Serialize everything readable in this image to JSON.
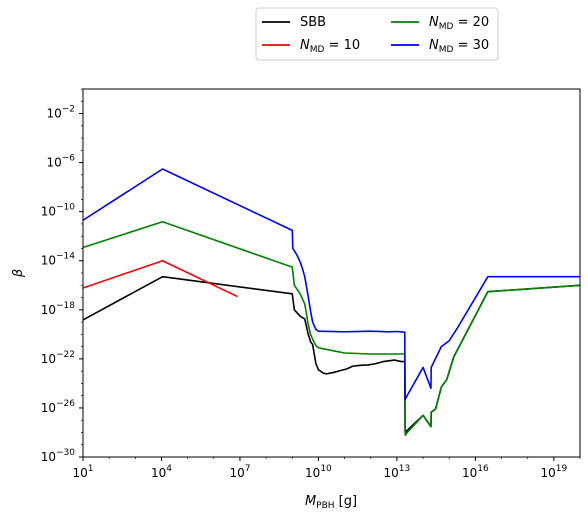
{
  "chart_data": {
    "type": "line",
    "xlabel": "M_PBH [g]",
    "ylabel": "β",
    "x_scale": "log",
    "y_scale": "log",
    "xlim": [
      10,
      1e+20
    ],
    "ylim": [
      1e-30,
      1
    ],
    "x_ticks": [
      {
        "value": 10,
        "base": "10",
        "exp": "1"
      },
      {
        "value": 10000.0,
        "base": "10",
        "exp": "4"
      },
      {
        "value": 10000000.0,
        "base": "10",
        "exp": "7"
      },
      {
        "value": 10000000000.0,
        "base": "10",
        "exp": "10"
      },
      {
        "value": 10000000000000.0,
        "base": "10",
        "exp": "13"
      },
      {
        "value": 1e+16,
        "base": "10",
        "exp": "16"
      },
      {
        "value": 1e+19,
        "base": "10",
        "exp": "19"
      }
    ],
    "y_ticks": [
      {
        "value": 1e-30,
        "base": "10",
        "exp": "−30"
      },
      {
        "value": 1e-26,
        "base": "10",
        "exp": "−26"
      },
      {
        "value": 1e-22,
        "base": "10",
        "exp": "−22"
      },
      {
        "value": 1e-18,
        "base": "10",
        "exp": "−18"
      },
      {
        "value": 1e-14,
        "base": "10",
        "exp": "−14"
      },
      {
        "value": 1e-10,
        "base": "10",
        "exp": "−10"
      },
      {
        "value": 1e-06,
        "base": "10",
        "exp": "−6"
      },
      {
        "value": 0.01,
        "base": "10",
        "exp": "−2"
      }
    ],
    "legend": {
      "placement": "above-plot",
      "columns": 2
    },
    "series": [
      {
        "name": "SBB",
        "label_main": "SBB",
        "label_sub": "",
        "label_suffix": "",
        "color": "#000000",
        "points": [
          [
            10,
            1.5e-19
          ],
          [
            11000.0,
            5e-16
          ],
          [
            1000000000.0,
            2e-17
          ],
          [
            1200000000.0,
            1e-18
          ],
          [
            2000000000.0,
            3e-19
          ],
          [
            3000000000.0,
            1.8e-19
          ],
          [
            4000000000.0,
            1.2e-20
          ],
          [
            5000000000.0,
            2.5e-21
          ],
          [
            6000000000.0,
            1.5e-21
          ],
          [
            8000000000.0,
            4e-23
          ],
          [
            10000000000.0,
            1.3e-23
          ],
          [
            15000000000.0,
            7e-24
          ],
          [
            20000000000.0,
            6e-24
          ],
          [
            40000000000.0,
            8e-24
          ],
          [
            80000000000.0,
            1.2e-23
          ],
          [
            120000000000.0,
            1.5e-23
          ],
          [
            200000000000.0,
            2.5e-23
          ],
          [
            400000000000.0,
            3e-23
          ],
          [
            800000000000.0,
            3.2e-23
          ],
          [
            1500000000000.0,
            4e-23
          ],
          [
            3000000000000.0,
            6e-23
          ],
          [
            8000000000000.0,
            8e-23
          ],
          [
            15000000000000.0,
            6e-23
          ],
          [
            20000000000000.0,
            6e-23
          ],
          [
            20500000000000.0,
            1e-28
          ],
          [
            25000000000000.0,
            1.5e-28
          ],
          [
            100000000000000.0,
            2.5e-27
          ],
          [
            200000000000000.0,
            3e-28
          ],
          [
            205000000000000.0,
            4.5e-27
          ],
          [
            300000000000000.0,
            8e-27
          ],
          [
            500000000000000.0,
            5e-25
          ],
          [
            800000000000000.0,
            2e-24
          ],
          [
            1500000000000000.0,
            1.5e-22
          ],
          [
            3e+16,
            3e-17
          ],
          [
            1e+20,
            1e-16
          ]
        ]
      },
      {
        "name": "N_MD = 10",
        "label_main": "N",
        "label_sub": "MD",
        "label_suffix": " = 10",
        "color": "#ff0000",
        "points": [
          [
            10,
            6e-17
          ],
          [
            11000.0,
            1e-14
          ],
          [
            8000000.0,
            1.2e-17
          ]
        ]
      },
      {
        "name": "N_MD = 20",
        "label_main": "N",
        "label_sub": "MD",
        "label_suffix": " = 20",
        "color": "#008000",
        "points": [
          [
            10,
            1.2e-13
          ],
          [
            11000.0,
            1.5e-11
          ],
          [
            1000000000.0,
            3e-15
          ],
          [
            1200000000.0,
            1e-16
          ],
          [
            2000000000.0,
            2e-17
          ],
          [
            3000000000.0,
            3e-18
          ],
          [
            4000000000.0,
            8e-20
          ],
          [
            5000000000.0,
            1e-20
          ],
          [
            6000000000.0,
            4e-21
          ],
          [
            8000000000.0,
            1.2e-21
          ],
          [
            10000000000.0,
            8e-22
          ],
          [
            30000000000.0,
            5e-22
          ],
          [
            100000000000.0,
            3e-22
          ],
          [
            1000000000000.0,
            2.5e-22
          ],
          [
            15000000000000.0,
            2.5e-22
          ],
          [
            20000000000000.0,
            2.5e-22
          ],
          [
            21000000000000.0,
            6e-29
          ],
          [
            25000000000000.0,
            1e-28
          ],
          [
            100000000000000.0,
            2.5e-27
          ],
          [
            200000000000000.0,
            3e-28
          ],
          [
            205000000000000.0,
            4.5e-27
          ],
          [
            300000000000000.0,
            8e-27
          ],
          [
            500000000000000.0,
            5e-25
          ],
          [
            800000000000000.0,
            2e-24
          ],
          [
            1500000000000000.0,
            1.5e-22
          ],
          [
            3e+16,
            3e-17
          ],
          [
            1e+20,
            1e-16
          ]
        ]
      },
      {
        "name": "N_MD = 30",
        "label_main": "N",
        "label_sub": "MD",
        "label_suffix": " = 30",
        "color": "#0000ff",
        "points": [
          [
            10,
            2e-11
          ],
          [
            11000.0,
            3e-07
          ],
          [
            1000000000.0,
            3e-12
          ],
          [
            1050000000.0,
            1e-13
          ],
          [
            1500000000.0,
            3e-14
          ],
          [
            2000000000.0,
            8e-15
          ],
          [
            2500000000.0,
            2e-15
          ],
          [
            3000000000.0,
            5e-16
          ],
          [
            4000000000.0,
            1.5e-17
          ],
          [
            5000000000.0,
            8e-19
          ],
          [
            6000000000.0,
            1e-19
          ],
          [
            8000000000.0,
            2.5e-20
          ],
          [
            10000000000.0,
            1.8e-20
          ],
          [
            100000000000.0,
            1.6e-20
          ],
          [
            1000000000000.0,
            1.8e-20
          ],
          [
            5000000000000.0,
            1.6e-20
          ],
          [
            10000000000000.0,
            1.7e-20
          ],
          [
            20000000000000.0,
            1.5e-20
          ],
          [
            20500000000000.0,
            5e-26
          ],
          [
            100000000000000.0,
            2e-23
          ],
          [
            200000000000000.0,
            4e-25
          ],
          [
            205000000000000.0,
            2e-23
          ],
          [
            500000000000000.0,
            1e-21
          ],
          [
            1000000000000000.0,
            3e-21
          ],
          [
            2000000000000000.0,
            3e-20
          ],
          [
            3e+16,
            5e-16
          ],
          [
            1e+20,
            5e-16
          ]
        ]
      }
    ]
  }
}
